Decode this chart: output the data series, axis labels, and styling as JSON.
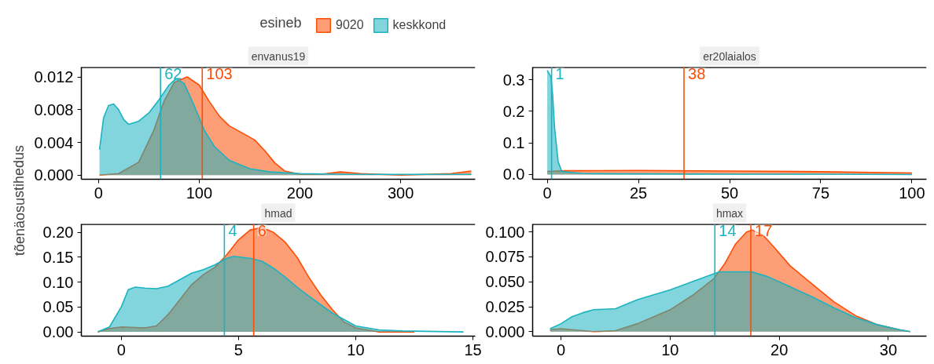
{
  "chart_data": [
    {
      "type": "area",
      "title": "envanus19",
      "ylabel": "tõenäosustihedus",
      "legend_title": "esineb",
      "legend": "top",
      "xlim": [
        -17,
        374
      ],
      "ylim": [
        -0.0005,
        0.0132
      ],
      "xticks": [
        0,
        100,
        200,
        300
      ],
      "yticks": [
        {
          "value": 0,
          "label": "0.000"
        },
        {
          "value": 0.004,
          "label": "0.004"
        },
        {
          "value": 0.008,
          "label": "0.008"
        },
        {
          "value": 0.012,
          "label": "0.012"
        }
      ],
      "grid": false,
      "series": [
        {
          "name": "9020",
          "color": "#fc4e07",
          "x": [
            1,
            20,
            40,
            55,
            65,
            75,
            88,
            100,
            110,
            120,
            130,
            145,
            155,
            165,
            175,
            185,
            200,
            220,
            240,
            260,
            300,
            350,
            370
          ],
          "values": [
            0,
            0.0002,
            0.0016,
            0.0055,
            0.009,
            0.0113,
            0.012,
            0.011,
            0.009,
            0.0072,
            0.006,
            0.005,
            0.0043,
            0.003,
            0.0015,
            0.0005,
            0.0001,
            0.0001,
            0.0004,
            0.0002,
            0,
            0.0002,
            0.0005
          ]
        },
        {
          "name": "keskkond",
          "color": "#1bb3c0",
          "x": [
            1,
            5,
            10,
            15,
            20,
            25,
            30,
            40,
            50,
            60,
            70,
            77,
            85,
            95,
            105,
            115,
            130,
            150,
            170,
            200,
            250,
            300,
            370
          ],
          "values": [
            0.0031,
            0.007,
            0.0085,
            0.0087,
            0.008,
            0.0068,
            0.0062,
            0.0066,
            0.0076,
            0.0092,
            0.011,
            0.0118,
            0.0112,
            0.0085,
            0.0055,
            0.0035,
            0.0018,
            0.0008,
            0.0004,
            0.0002,
            0.0001,
            0.0001,
            0.0001
          ]
        }
      ],
      "ref_lines": [
        {
          "axis": "x",
          "value": 61.6,
          "label": "62",
          "color": "#1bb3c0"
        },
        {
          "axis": "x",
          "value": 103,
          "label": "103",
          "color": "#fc4e07"
        }
      ]
    },
    {
      "type": "area",
      "title": "er20laialos",
      "xlim": [
        -4,
        104
      ],
      "ylim": [
        -0.015,
        0.34
      ],
      "xticks": [
        0,
        25,
        50,
        75,
        100
      ],
      "yticks": [
        {
          "value": 0,
          "label": "0.0"
        },
        {
          "value": 0.1,
          "label": "0.1"
        },
        {
          "value": 0.2,
          "label": "0.2"
        },
        {
          "value": 0.3,
          "label": "0.3"
        }
      ],
      "grid": false,
      "series": [
        {
          "color": "#fc4e07",
          "x": [
            0,
            5,
            25,
            50,
            75,
            100
          ],
          "values": [
            0.01,
            0.012,
            0.013,
            0.011,
            0.009,
            0.005
          ]
        },
        {
          "color": "#1bb3c0",
          "x": [
            0,
            0.5,
            1,
            1.5,
            2,
            3,
            4,
            10,
            25,
            50,
            75,
            100
          ],
          "values": [
            0.33,
            0.32,
            0.31,
            0.25,
            0.15,
            0.04,
            0.01,
            0.003,
            0.002,
            0.001,
            0.001,
            0
          ]
        }
      ],
      "ref_lines": [
        {
          "axis": "x",
          "value": 1.2,
          "label": "1",
          "color": "#1bb3c0"
        },
        {
          "axis": "x",
          "value": 37.5,
          "label": "38",
          "color": "#fc4e07"
        }
      ]
    },
    {
      "type": "area",
      "title": "hmad",
      "xlim": [
        -1.7,
        15.1
      ],
      "ylim": [
        -0.0085,
        0.217
      ],
      "xticks": [
        0,
        5,
        10,
        15
      ],
      "yticks": [
        {
          "value": 0,
          "label": "0.00"
        },
        {
          "value": 0.05,
          "label": "0.05"
        },
        {
          "value": 0.1,
          "label": "0.10"
        },
        {
          "value": 0.15,
          "label": "0.15"
        },
        {
          "value": 0.2,
          "label": "0.20"
        }
      ],
      "grid": false,
      "series": [
        {
          "color": "#fc4e07",
          "x": [
            -1,
            -0.5,
            0,
            1,
            1.5,
            2,
            2.5,
            3,
            3.5,
            4,
            4.5,
            5,
            5.5,
            6,
            6.5,
            7,
            7.5,
            8,
            8.5,
            9,
            9.5,
            10,
            11,
            12.5
          ],
          "values": [
            0,
            0.007,
            0.01,
            0.008,
            0.012,
            0.035,
            0.065,
            0.095,
            0.115,
            0.13,
            0.155,
            0.185,
            0.205,
            0.21,
            0.2,
            0.18,
            0.15,
            0.11,
            0.075,
            0.045,
            0.02,
            0.008,
            0,
            0
          ]
        },
        {
          "color": "#1bb3c0",
          "x": [
            -1,
            -0.5,
            0,
            0.3,
            0.6,
            1,
            1.5,
            2,
            2.5,
            3,
            3.5,
            4,
            4.5,
            4.8,
            5.5,
            6,
            6.5,
            7,
            7.5,
            8,
            8.5,
            9,
            10,
            11,
            12,
            14.6
          ],
          "values": [
            0,
            0.01,
            0.05,
            0.085,
            0.09,
            0.088,
            0.087,
            0.092,
            0.105,
            0.118,
            0.125,
            0.135,
            0.148,
            0.152,
            0.148,
            0.142,
            0.128,
            0.11,
            0.09,
            0.072,
            0.055,
            0.038,
            0.012,
            0.004,
            0.002,
            0
          ]
        }
      ],
      "ref_lines": [
        {
          "axis": "x",
          "value": 4.4,
          "label": "4",
          "color": "#1bb3c0"
        },
        {
          "axis": "x",
          "value": 5.65,
          "label": "6",
          "color": "#fc4e07"
        }
      ]
    },
    {
      "type": "area",
      "title": "hmax",
      "xlim": [
        -2.6,
        33.5
      ],
      "ylim": [
        -0.0045,
        0.108
      ],
      "xticks": [
        0,
        10,
        20,
        30
      ],
      "yticks": [
        {
          "value": 0,
          "label": "0.000"
        },
        {
          "value": 0.025,
          "label": "0.025"
        },
        {
          "value": 0.05,
          "label": "0.050"
        },
        {
          "value": 0.075,
          "label": "0.075"
        },
        {
          "value": 0.1,
          "label": "0.100"
        }
      ],
      "grid": false,
      "series": [
        {
          "color": "#fc4e07",
          "x": [
            -1,
            0,
            1,
            3,
            5,
            7,
            10,
            12,
            14,
            15,
            16,
            17,
            17.5,
            18.5,
            19.5,
            21,
            23,
            25,
            27,
            29,
            31,
            32
          ],
          "values": [
            0.002,
            0.003,
            0.002,
            0,
            0.001,
            0.008,
            0.022,
            0.036,
            0.053,
            0.068,
            0.088,
            0.1,
            0.102,
            0.097,
            0.085,
            0.066,
            0.048,
            0.03,
            0.016,
            0.007,
            0.002,
            0
          ]
        },
        {
          "color": "#1bb3c0",
          "x": [
            -1,
            0,
            1,
            2,
            3,
            5,
            7,
            10,
            12,
            14,
            14.5,
            17.5,
            19,
            21,
            23,
            25,
            27,
            29,
            31,
            32
          ],
          "values": [
            0.003,
            0.008,
            0.015,
            0.019,
            0.022,
            0.023,
            0.032,
            0.042,
            0.05,
            0.058,
            0.06,
            0.06,
            0.055,
            0.045,
            0.035,
            0.024,
            0.014,
            0.007,
            0.002,
            0
          ]
        }
      ],
      "ref_lines": [
        {
          "axis": "x",
          "value": 14.1,
          "label": "14",
          "color": "#1bb3c0"
        },
        {
          "axis": "x",
          "value": 17.4,
          "label": "17",
          "color": "#fc4e07"
        }
      ]
    }
  ]
}
